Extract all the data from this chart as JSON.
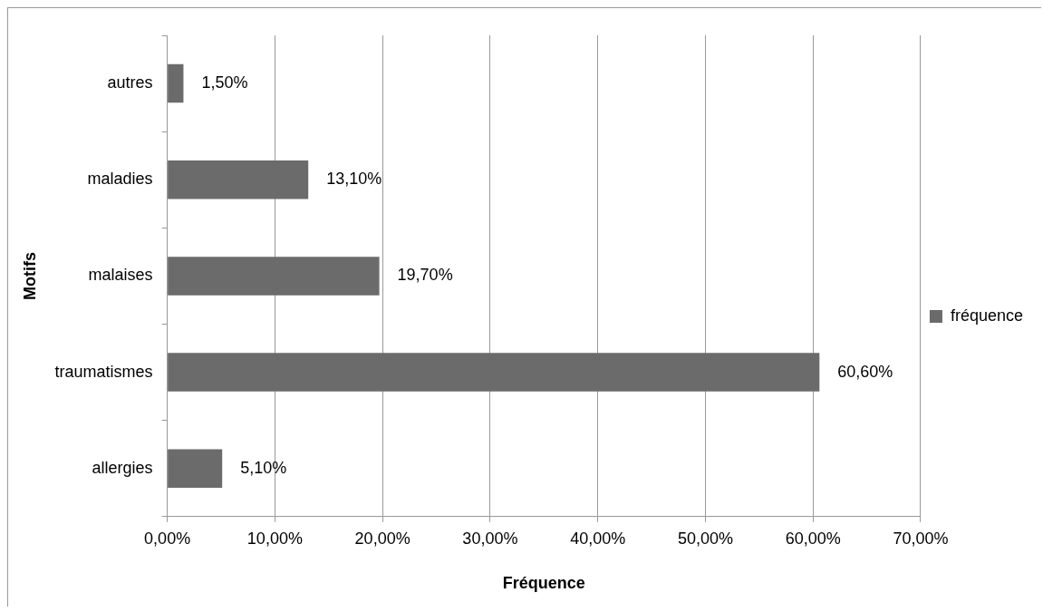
{
  "chart_data": {
    "type": "bar",
    "orientation": "horizontal",
    "xlabel": "Fréquence",
    "ylabel": "Motifs",
    "categories": [
      "autres",
      "maladies",
      "malaises",
      "traumatismes",
      "allergies"
    ],
    "series": [
      {
        "name": "fréquence",
        "color": "#6b6b6b",
        "values": [
          1.5,
          13.1,
          19.7,
          60.6,
          5.1
        ],
        "value_labels": [
          "1,50%",
          "13,10%",
          "19,70%",
          "60,60%",
          "5,10%"
        ]
      }
    ],
    "xlim": [
      0,
      70
    ],
    "xticks": [
      {
        "value": 0,
        "label": "0,00%"
      },
      {
        "value": 10,
        "label": "10,00%"
      },
      {
        "value": 20,
        "label": "20,00%"
      },
      {
        "value": 30,
        "label": "30,00%"
      },
      {
        "value": 40,
        "label": "40,00%"
      },
      {
        "value": 50,
        "label": "50,00%"
      },
      {
        "value": 60,
        "label": "60,00%"
      },
      {
        "value": 70,
        "label": "70,00%"
      }
    ],
    "grid": "x",
    "legend": "right"
  }
}
